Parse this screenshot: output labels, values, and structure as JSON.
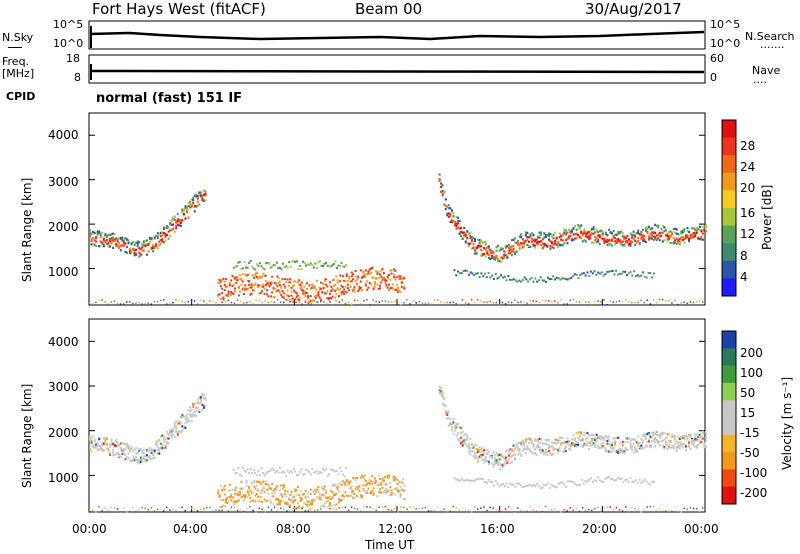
{
  "header": {
    "title": "Fort Hays West (fitACF)",
    "beam": "Beam 00",
    "date": "30/Aug/2017"
  },
  "strip_labels": {
    "nsky": "N.Sky",
    "nsearch": "N.Search",
    "freq_line1": "Freq.",
    "freq_line2": "[MHz]",
    "nave": "Nave",
    "cpid": "CPID",
    "cpid_value": "normal (fast) 151 IF"
  },
  "strip_ticks": {
    "noise_left": [
      "10^5",
      "10^0"
    ],
    "noise_right": [
      "10^5",
      "10^0"
    ],
    "freq_left": [
      "18",
      "8"
    ],
    "nave_right": [
      "60",
      "0"
    ]
  },
  "colors": {
    "power": [
      "#1c1cff",
      "#2a55a8",
      "#3d8a6e",
      "#5aa257",
      "#a8c83c",
      "#f5cc1e",
      "#f39a1a",
      "#ef6a1a",
      "#e8351c",
      "#e01010"
    ],
    "velocity": [
      "#e01010",
      "#ef4a10",
      "#f29a1a",
      "#f5b52a",
      "#c8c8c8",
      "#c8c8c8",
      "#8ed052",
      "#3d9e3d",
      "#2a7a5a",
      "#1c3fa8"
    ]
  },
  "chart_data": [
    {
      "type": "heatmap",
      "title": "",
      "xlabel": "",
      "ylabel": "Slant Range [km]",
      "xlim": [
        "00:00",
        "24:00"
      ],
      "x_ticks": [
        "00:00",
        "04:00",
        "08:00",
        "12:00",
        "16:00",
        "20:00",
        "00:00"
      ],
      "ylim": [
        180,
        4500
      ],
      "y_ticks": [
        "1000",
        "2000",
        "3000",
        "4000"
      ],
      "colorbar": {
        "label": "Power [dB]",
        "range": [
          0,
          32
        ],
        "ticks": [
          "4",
          "8",
          "12",
          "16",
          "20",
          "24",
          "28"
        ]
      },
      "echo_band_trace": {
        "time_h": [
          0,
          1,
          2,
          2.5,
          3,
          3.5,
          4,
          4.5,
          13.6,
          14,
          15,
          16,
          17,
          18,
          19,
          20,
          21,
          22,
          23,
          24
        ],
        "range_km": [
          1700,
          1600,
          1400,
          1550,
          1800,
          2100,
          2400,
          2700,
          3000,
          2200,
          1500,
          1300,
          1650,
          1600,
          1800,
          1700,
          1650,
          1800,
          1700,
          1800
        ]
      }
    },
    {
      "type": "heatmap",
      "title": "",
      "xlabel": "Time UT",
      "ylabel": "Slant Range [km]",
      "xlim": [
        "00:00",
        "24:00"
      ],
      "x_ticks": [
        "00:00",
        "04:00",
        "08:00",
        "12:00",
        "16:00",
        "20:00",
        "00:00"
      ],
      "ylim": [
        180,
        4500
      ],
      "y_ticks": [
        "1000",
        "2000",
        "3000",
        "4000"
      ],
      "colorbar": {
        "label": "Velocity [m s⁻¹]",
        "range": [
          -250,
          250
        ],
        "ticks": [
          "200",
          "100",
          "50",
          "15",
          "-15",
          "-50",
          "-100",
          "-200"
        ]
      }
    }
  ]
}
